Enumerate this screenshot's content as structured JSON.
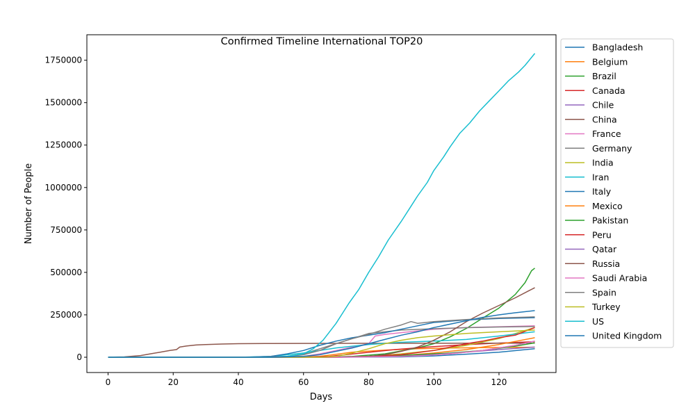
{
  "chart_data": {
    "type": "line",
    "title": "Confirmed Timeline International TOP20",
    "xlabel": "Days",
    "ylabel": "Number of People",
    "xlim": [
      -6.5,
      137.5
    ],
    "ylim": [
      -90000,
      1900000
    ],
    "xticks": [
      0,
      20,
      40,
      60,
      80,
      100,
      120
    ],
    "yticks": [
      0,
      250000,
      500000,
      750000,
      1000000,
      1250000,
      1500000,
      1750000
    ],
    "grid": false,
    "legend_position": "outside-right",
    "series": [
      {
        "name": "Bangladesh",
        "color": "#1f77b4",
        "points": [
          [
            0,
            0
          ],
          [
            70,
            0
          ],
          [
            90,
            2000
          ],
          [
            100,
            8000
          ],
          [
            110,
            18000
          ],
          [
            120,
            30000
          ],
          [
            131,
            50000
          ]
        ]
      },
      {
        "name": "Belgium",
        "color": "#ff7f0e",
        "points": [
          [
            0,
            0
          ],
          [
            55,
            0
          ],
          [
            65,
            5000
          ],
          [
            75,
            30000
          ],
          [
            85,
            42000
          ],
          [
            95,
            50000
          ],
          [
            105,
            54000
          ],
          [
            115,
            57000
          ],
          [
            131,
            59000
          ]
        ]
      },
      {
        "name": "Brazil",
        "color": "#2ca02c",
        "points": [
          [
            0,
            0
          ],
          [
            65,
            0
          ],
          [
            75,
            5000
          ],
          [
            85,
            20000
          ],
          [
            95,
            55000
          ],
          [
            100,
            80000
          ],
          [
            105,
            120000
          ],
          [
            110,
            170000
          ],
          [
            115,
            230000
          ],
          [
            120,
            290000
          ],
          [
            125,
            370000
          ],
          [
            128,
            440000
          ],
          [
            130,
            510000
          ],
          [
            131,
            525000
          ]
        ]
      },
      {
        "name": "Canada",
        "color": "#d62728",
        "points": [
          [
            0,
            0
          ],
          [
            58,
            0
          ],
          [
            68,
            5000
          ],
          [
            78,
            25000
          ],
          [
            88,
            45000
          ],
          [
            98,
            60000
          ],
          [
            108,
            72000
          ],
          [
            118,
            82000
          ],
          [
            131,
            92000
          ]
        ]
      },
      {
        "name": "Chile",
        "color": "#9467bd",
        "points": [
          [
            0,
            0
          ],
          [
            65,
            0
          ],
          [
            75,
            3000
          ],
          [
            85,
            8000
          ],
          [
            95,
            12000
          ],
          [
            105,
            20000
          ],
          [
            115,
            40000
          ],
          [
            125,
            70000
          ],
          [
            131,
            95000
          ]
        ]
      },
      {
        "name": "China",
        "color": "#8c564b",
        "points": [
          [
            0,
            500
          ],
          [
            5,
            2000
          ],
          [
            10,
            10000
          ],
          [
            13,
            20000
          ],
          [
            16,
            30000
          ],
          [
            19,
            40000
          ],
          [
            21,
            45000
          ],
          [
            22,
            60000
          ],
          [
            24,
            66000
          ],
          [
            27,
            72000
          ],
          [
            30,
            75000
          ],
          [
            35,
            78000
          ],
          [
            40,
            80000
          ],
          [
            50,
            81000
          ],
          [
            60,
            81500
          ],
          [
            80,
            82000
          ],
          [
            100,
            82500
          ],
          [
            131,
            83000
          ]
        ]
      },
      {
        "name": "France",
        "color": "#e377c2",
        "points": [
          [
            0,
            0
          ],
          [
            50,
            0
          ],
          [
            60,
            5000
          ],
          [
            65,
            20000
          ],
          [
            70,
            40000
          ],
          [
            75,
            60000
          ],
          [
            80,
            80000
          ],
          [
            82,
            125000
          ],
          [
            85,
            135000
          ],
          [
            90,
            145000
          ],
          [
            100,
            165000
          ],
          [
            110,
            175000
          ],
          [
            120,
            180000
          ],
          [
            131,
            185000
          ]
        ]
      },
      {
        "name": "Germany",
        "color": "#7f7f7f",
        "points": [
          [
            0,
            0
          ],
          [
            45,
            0
          ],
          [
            55,
            5000
          ],
          [
            60,
            20000
          ],
          [
            65,
            50000
          ],
          [
            70,
            80000
          ],
          [
            75,
            110000
          ],
          [
            80,
            140000
          ],
          [
            85,
            150000
          ],
          [
            90,
            160000
          ],
          [
            100,
            168000
          ],
          [
            110,
            174000
          ],
          [
            120,
            178000
          ],
          [
            131,
            181000
          ]
        ]
      },
      {
        "name": "India",
        "color": "#bcbd22",
        "points": [
          [
            0,
            0
          ],
          [
            70,
            0
          ],
          [
            80,
            5000
          ],
          [
            90,
            20000
          ],
          [
            100,
            40000
          ],
          [
            110,
            70000
          ],
          [
            115,
            90000
          ],
          [
            120,
            110000
          ],
          [
            125,
            140000
          ],
          [
            131,
            175000
          ]
        ]
      },
      {
        "name": "Iran",
        "color": "#17becf",
        "points": [
          [
            0,
            0
          ],
          [
            40,
            0
          ],
          [
            50,
            5000
          ],
          [
            55,
            15000
          ],
          [
            60,
            25000
          ],
          [
            65,
            40000
          ],
          [
            70,
            55000
          ],
          [
            75,
            65000
          ],
          [
            80,
            75000
          ],
          [
            85,
            82000
          ],
          [
            90,
            88000
          ],
          [
            100,
            95000
          ],
          [
            110,
            105000
          ],
          [
            120,
            125000
          ],
          [
            131,
            150000
          ]
        ]
      },
      {
        "name": "Italy",
        "color": "#1f77b4",
        "points": [
          [
            0,
            0
          ],
          [
            42,
            0
          ],
          [
            50,
            5000
          ],
          [
            55,
            20000
          ],
          [
            60,
            40000
          ],
          [
            65,
            70000
          ],
          [
            70,
            95000
          ],
          [
            75,
            115000
          ],
          [
            80,
            130000
          ],
          [
            85,
            145000
          ],
          [
            90,
            165000
          ],
          [
            95,
            185000
          ],
          [
            100,
            205000
          ],
          [
            110,
            220000
          ],
          [
            120,
            228000
          ],
          [
            131,
            233000
          ]
        ]
      },
      {
        "name": "Mexico",
        "color": "#ff7f0e",
        "points": [
          [
            0,
            0
          ],
          [
            70,
            0
          ],
          [
            80,
            3000
          ],
          [
            90,
            10000
          ],
          [
            100,
            25000
          ],
          [
            110,
            45000
          ],
          [
            120,
            75000
          ],
          [
            131,
            115000
          ]
        ]
      },
      {
        "name": "Pakistan",
        "color": "#2ca02c",
        "points": [
          [
            0,
            0
          ],
          [
            65,
            0
          ],
          [
            75,
            3000
          ],
          [
            85,
            8000
          ],
          [
            95,
            15000
          ],
          [
            105,
            25000
          ],
          [
            115,
            40000
          ],
          [
            125,
            65000
          ],
          [
            131,
            85000
          ]
        ]
      },
      {
        "name": "Peru",
        "color": "#d62728",
        "points": [
          [
            0,
            0
          ],
          [
            70,
            0
          ],
          [
            80,
            5000
          ],
          [
            90,
            15000
          ],
          [
            100,
            40000
          ],
          [
            105,
            60000
          ],
          [
            110,
            80000
          ],
          [
            115,
            95000
          ],
          [
            120,
            115000
          ],
          [
            125,
            130000
          ],
          [
            131,
            175000
          ]
        ]
      },
      {
        "name": "Qatar",
        "color": "#9467bd",
        "points": [
          [
            0,
            0
          ],
          [
            70,
            0
          ],
          [
            80,
            2000
          ],
          [
            90,
            5000
          ],
          [
            100,
            15000
          ],
          [
            110,
            30000
          ],
          [
            120,
            45000
          ],
          [
            131,
            60000
          ]
        ]
      },
      {
        "name": "Russia",
        "color": "#8c564b",
        "points": [
          [
            0,
            0
          ],
          [
            65,
            0
          ],
          [
            75,
            2000
          ],
          [
            80,
            5000
          ],
          [
            85,
            15000
          ],
          [
            90,
            35000
          ],
          [
            95,
            60000
          ],
          [
            100,
            100000
          ],
          [
            105,
            150000
          ],
          [
            110,
            210000
          ],
          [
            115,
            260000
          ],
          [
            120,
            305000
          ],
          [
            125,
            350000
          ],
          [
            131,
            410000
          ]
        ]
      },
      {
        "name": "Saudi Arabia",
        "color": "#e377c2",
        "points": [
          [
            0,
            0
          ],
          [
            65,
            0
          ],
          [
            75,
            1000
          ],
          [
            85,
            3000
          ],
          [
            95,
            8000
          ],
          [
            105,
            20000
          ],
          [
            115,
            40000
          ],
          [
            125,
            70000
          ],
          [
            131,
            95000
          ]
        ]
      },
      {
        "name": "Spain",
        "color": "#7f7f7f",
        "points": [
          [
            0,
            0
          ],
          [
            45,
            0
          ],
          [
            55,
            5000
          ],
          [
            60,
            15000
          ],
          [
            65,
            40000
          ],
          [
            70,
            80000
          ],
          [
            75,
            110000
          ],
          [
            80,
            135000
          ],
          [
            85,
            165000
          ],
          [
            90,
            190000
          ],
          [
            93,
            210000
          ],
          [
            95,
            200000
          ],
          [
            100,
            210000
          ],
          [
            110,
            222000
          ],
          [
            120,
            232000
          ],
          [
            131,
            238000
          ]
        ]
      },
      {
        "name": "Turkey",
        "color": "#bcbd22",
        "points": [
          [
            0,
            0
          ],
          [
            65,
            0
          ],
          [
            70,
            5000
          ],
          [
            75,
            25000
          ],
          [
            80,
            50000
          ],
          [
            85,
            80000
          ],
          [
            90,
            100000
          ],
          [
            95,
            115000
          ],
          [
            100,
            125000
          ],
          [
            110,
            140000
          ],
          [
            120,
            150000
          ],
          [
            131,
            160000
          ]
        ]
      },
      {
        "name": "US",
        "color": "#17becf",
        "points": [
          [
            0,
            0
          ],
          [
            50,
            0
          ],
          [
            55,
            5000
          ],
          [
            60,
            20000
          ],
          [
            63,
            50000
          ],
          [
            66,
            100000
          ],
          [
            68,
            150000
          ],
          [
            70,
            200000
          ],
          [
            72,
            260000
          ],
          [
            74,
            320000
          ],
          [
            77,
            400000
          ],
          [
            80,
            500000
          ],
          [
            83,
            590000
          ],
          [
            86,
            690000
          ],
          [
            90,
            800000
          ],
          [
            93,
            890000
          ],
          [
            95,
            950000
          ],
          [
            98,
            1030000
          ],
          [
            100,
            1100000
          ],
          [
            103,
            1180000
          ],
          [
            105,
            1240000
          ],
          [
            108,
            1320000
          ],
          [
            111,
            1380000
          ],
          [
            114,
            1450000
          ],
          [
            117,
            1510000
          ],
          [
            120,
            1570000
          ],
          [
            123,
            1630000
          ],
          [
            126,
            1680000
          ],
          [
            128,
            1720000
          ],
          [
            131,
            1790000
          ]
        ]
      },
      {
        "name": "United Kingdom",
        "color": "#1f77b4",
        "points": [
          [
            0,
            0
          ],
          [
            50,
            0
          ],
          [
            60,
            5000
          ],
          [
            65,
            15000
          ],
          [
            70,
            35000
          ],
          [
            75,
            55000
          ],
          [
            80,
            80000
          ],
          [
            85,
            105000
          ],
          [
            90,
            130000
          ],
          [
            95,
            150000
          ],
          [
            100,
            175000
          ],
          [
            105,
            195000
          ],
          [
            110,
            215000
          ],
          [
            115,
            235000
          ],
          [
            120,
            250000
          ],
          [
            125,
            262000
          ],
          [
            131,
            275000
          ]
        ]
      }
    ]
  }
}
